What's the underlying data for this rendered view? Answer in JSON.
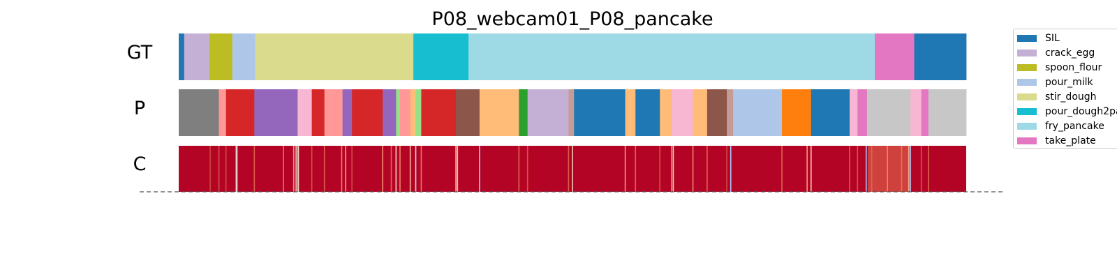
{
  "chart_data": {
    "type": "segmentation",
    "title": "P08_webcam01_P08_pancake",
    "row_labels": [
      "GT",
      "P",
      "C"
    ],
    "timeline_range": [
      0,
      1
    ],
    "legend": [
      {
        "label": "SIL",
        "color": "#1f77b4"
      },
      {
        "label": "crack_egg",
        "color": "#c5b0d5"
      },
      {
        "label": "spoon_flour",
        "color": "#bcbd22"
      },
      {
        "label": "pour_milk",
        "color": "#aec7e8"
      },
      {
        "label": "stir_dough",
        "color": "#dbdb8d"
      },
      {
        "label": "pour_dough2pa",
        "color": "#17becf"
      },
      {
        "label": "fry_pancake",
        "color": "#9edae5"
      },
      {
        "label": "take_plate",
        "color": "#e377c2"
      }
    ],
    "gt_segments": [
      {
        "start": 0.0,
        "end": 0.007,
        "color": "#1f77b4",
        "action": "SIL"
      },
      {
        "start": 0.007,
        "end": 0.039,
        "color": "#c5b0d5",
        "action": "crack_egg"
      },
      {
        "start": 0.039,
        "end": 0.068,
        "color": "#bcbd22",
        "action": "spoon_flour"
      },
      {
        "start": 0.068,
        "end": 0.097,
        "color": "#aec7e8",
        "action": "pour_milk"
      },
      {
        "start": 0.097,
        "end": 0.298,
        "color": "#dbdb8d",
        "action": "stir_dough"
      },
      {
        "start": 0.298,
        "end": 0.368,
        "color": "#17becf",
        "action": "pour_dough2pa"
      },
      {
        "start": 0.368,
        "end": 0.884,
        "color": "#9edae5",
        "action": "fry_pancake"
      },
      {
        "start": 0.884,
        "end": 0.934,
        "color": "#e377c2",
        "action": "take_plate"
      },
      {
        "start": 0.934,
        "end": 1.0,
        "color": "#1f77b4",
        "action": "SIL"
      }
    ],
    "p_segments": [
      {
        "start": 0.0,
        "end": 0.051,
        "color": "#7f7f7f"
      },
      {
        "start": 0.051,
        "end": 0.06,
        "color": "#ff9896"
      },
      {
        "start": 0.06,
        "end": 0.096,
        "color": "#d62728"
      },
      {
        "start": 0.096,
        "end": 0.151,
        "color": "#9467bd"
      },
      {
        "start": 0.151,
        "end": 0.169,
        "color": "#f7b6d2"
      },
      {
        "start": 0.169,
        "end": 0.185,
        "color": "#d62728"
      },
      {
        "start": 0.185,
        "end": 0.208,
        "color": "#ff9896"
      },
      {
        "start": 0.208,
        "end": 0.22,
        "color": "#9467bd"
      },
      {
        "start": 0.22,
        "end": 0.259,
        "color": "#d62728"
      },
      {
        "start": 0.259,
        "end": 0.276,
        "color": "#9467bd"
      },
      {
        "start": 0.276,
        "end": 0.281,
        "color": "#98df8a"
      },
      {
        "start": 0.281,
        "end": 0.294,
        "color": "#ff9896"
      },
      {
        "start": 0.294,
        "end": 0.301,
        "color": "#ffbb78"
      },
      {
        "start": 0.301,
        "end": 0.308,
        "color": "#98df8a"
      },
      {
        "start": 0.308,
        "end": 0.352,
        "color": "#d62728"
      },
      {
        "start": 0.352,
        "end": 0.382,
        "color": "#8c564b"
      },
      {
        "start": 0.382,
        "end": 0.432,
        "color": "#ffbb78"
      },
      {
        "start": 0.432,
        "end": 0.443,
        "color": "#2ca02c"
      },
      {
        "start": 0.443,
        "end": 0.495,
        "color": "#c5b0d5"
      },
      {
        "start": 0.495,
        "end": 0.502,
        "color": "#c49c94"
      },
      {
        "start": 0.502,
        "end": 0.567,
        "color": "#1f77b4"
      },
      {
        "start": 0.567,
        "end": 0.58,
        "color": "#ffbb78"
      },
      {
        "start": 0.58,
        "end": 0.611,
        "color": "#1f77b4"
      },
      {
        "start": 0.611,
        "end": 0.626,
        "color": "#ffbb78"
      },
      {
        "start": 0.626,
        "end": 0.653,
        "color": "#f7b6d2"
      },
      {
        "start": 0.653,
        "end": 0.671,
        "color": "#ffbb78"
      },
      {
        "start": 0.671,
        "end": 0.696,
        "color": "#8c564b"
      },
      {
        "start": 0.696,
        "end": 0.704,
        "color": "#c49c94"
      },
      {
        "start": 0.704,
        "end": 0.766,
        "color": "#aec7e8"
      },
      {
        "start": 0.766,
        "end": 0.803,
        "color": "#ff7f0e"
      },
      {
        "start": 0.803,
        "end": 0.852,
        "color": "#1f77b4"
      },
      {
        "start": 0.852,
        "end": 0.862,
        "color": "#f7b6d2"
      },
      {
        "start": 0.862,
        "end": 0.874,
        "color": "#e377c2"
      },
      {
        "start": 0.874,
        "end": 0.929,
        "color": "#c7c7c7"
      },
      {
        "start": 0.929,
        "end": 0.943,
        "color": "#f7b6d2"
      },
      {
        "start": 0.943,
        "end": 0.952,
        "color": "#e377c2"
      },
      {
        "start": 0.952,
        "end": 1.0,
        "color": "#c7c7c7"
      }
    ],
    "c_base_color": "#b40426",
    "c_marks": [
      {
        "pos": 0.04,
        "color": "#cf453c"
      },
      {
        "pos": 0.051,
        "color": "#d75445"
      },
      {
        "pos": 0.06,
        "color": "#d1493f"
      },
      {
        "pos": 0.073,
        "color": "#f2cbb7"
      },
      {
        "pos": 0.074,
        "color": "#d0dbea"
      },
      {
        "pos": 0.096,
        "color": "#dc5d4a"
      },
      {
        "pos": 0.133,
        "color": "#e8765c"
      },
      {
        "pos": 0.146,
        "color": "#f4987a"
      },
      {
        "pos": 0.149,
        "color": "#f7b497"
      },
      {
        "pos": 0.1505,
        "color": "#6f92f3"
      },
      {
        "pos": 0.152,
        "color": "#f2cbb7"
      },
      {
        "pos": 0.169,
        "color": "#d75445"
      },
      {
        "pos": 0.185,
        "color": "#dc5d4a"
      },
      {
        "pos": 0.207,
        "color": "#ee8468"
      },
      {
        "pos": 0.212,
        "color": "#f6a385"
      },
      {
        "pos": 0.22,
        "color": "#d1493f"
      },
      {
        "pos": 0.259,
        "color": "#f29072"
      },
      {
        "pos": 0.27,
        "color": "#e0654f"
      },
      {
        "pos": 0.276,
        "color": "#f2cbb7"
      },
      {
        "pos": 0.281,
        "color": "#ee8468"
      },
      {
        "pos": 0.294,
        "color": "#f7b497"
      },
      {
        "pos": 0.301,
        "color": "#d0dbea"
      },
      {
        "pos": 0.308,
        "color": "#e8765c"
      },
      {
        "pos": 0.352,
        "color": "#f7b497"
      },
      {
        "pos": 0.354,
        "color": "#f2cbb7"
      },
      {
        "pos": 0.382,
        "color": "#aac7fd"
      },
      {
        "pos": 0.432,
        "color": "#e0654f"
      },
      {
        "pos": 0.443,
        "color": "#d75445"
      },
      {
        "pos": 0.495,
        "color": "#dc5d4a"
      },
      {
        "pos": 0.5,
        "color": "#f2cbb7"
      },
      {
        "pos": 0.567,
        "color": "#f4987a"
      },
      {
        "pos": 0.58,
        "color": "#e0654f"
      },
      {
        "pos": 0.611,
        "color": "#d75445"
      },
      {
        "pos": 0.626,
        "color": "#f29072"
      },
      {
        "pos": 0.628,
        "color": "#f2cbb7"
      },
      {
        "pos": 0.653,
        "color": "#ee8468"
      },
      {
        "pos": 0.671,
        "color": "#e0654f"
      },
      {
        "pos": 0.696,
        "color": "#d1493f"
      },
      {
        "pos": 0.701,
        "color": "#aac7fd"
      },
      {
        "pos": 0.766,
        "color": "#e0654f"
      },
      {
        "pos": 0.798,
        "color": "#f4987a"
      },
      {
        "pos": 0.803,
        "color": "#f2cbb7"
      },
      {
        "pos": 0.852,
        "color": "#dc5d4a"
      },
      {
        "pos": 0.862,
        "color": "#d75445"
      },
      {
        "pos": 0.873,
        "color": "#aac7fd"
      },
      {
        "pos": 0.88,
        "color": "#e0654f"
      },
      {
        "pos": 0.9,
        "color": "#ee8468"
      },
      {
        "pos": 0.918,
        "color": "#e8765c"
      },
      {
        "pos": 0.927,
        "color": "#f6a385"
      },
      {
        "pos": 0.929,
        "color": "#aac7fd"
      },
      {
        "pos": 0.943,
        "color": "#d75445"
      },
      {
        "pos": 0.952,
        "color": "#e0654f"
      }
    ],
    "c_shaded": [
      {
        "start": 0.875,
        "end": 0.93,
        "color": "#d85646"
      }
    ]
  }
}
